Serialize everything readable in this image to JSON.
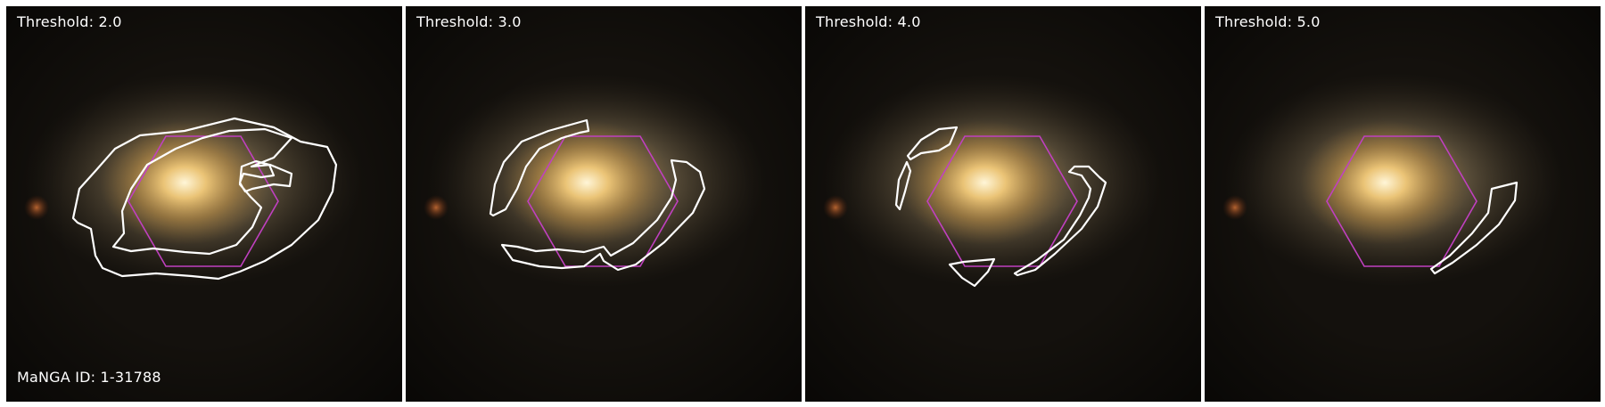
{
  "panels": [
    {
      "threshold_label": "Threshold: 2.0"
    },
    {
      "threshold_label": "Threshold: 3.0"
    },
    {
      "threshold_label": "Threshold: 4.0"
    },
    {
      "threshold_label": "Threshold: 5.0"
    }
  ],
  "galaxy_id_label": "MaNGA ID: 1-31788",
  "colors": {
    "contour": "#ffffff",
    "hexagon": "#c040c0",
    "background": "#14110d",
    "galaxy_core": "#fff2cc",
    "galaxy_halo": "#9c8a6a"
  }
}
